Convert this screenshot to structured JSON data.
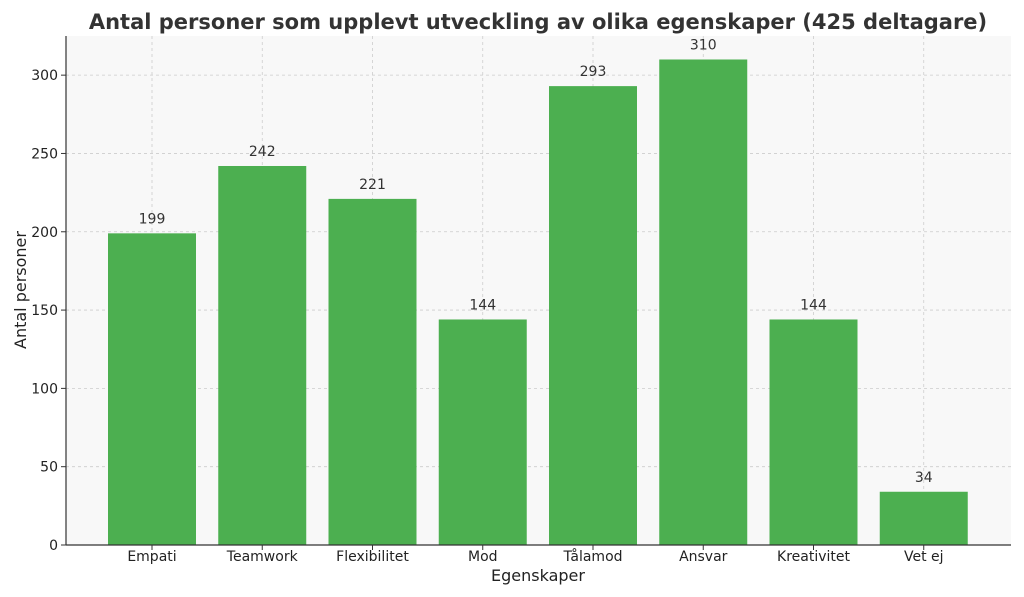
{
  "chart_data": {
    "type": "bar",
    "title": "Antal personer som upplevt utveckling av olika egenskaper (425 deltagare)",
    "xlabel": "Egenskaper",
    "ylabel": "Antal personer",
    "categories": [
      "Empati",
      "Teamwork",
      "Flexibilitet",
      "Mod",
      "Tålamod",
      "Ansvar",
      "Kreativitet",
      "Vet ej"
    ],
    "values": [
      199,
      242,
      221,
      144,
      293,
      310,
      144,
      34
    ],
    "data_labels": [
      "199",
      "242",
      "221",
      "144",
      "293",
      "310",
      "144",
      "34"
    ],
    "yticks": [
      0,
      50,
      100,
      150,
      200,
      250,
      300
    ],
    "ylim": [
      0,
      325
    ],
    "grid": true,
    "legend": "none",
    "bar_color": "#4caf50",
    "plot_background": "#f8f8f8"
  }
}
